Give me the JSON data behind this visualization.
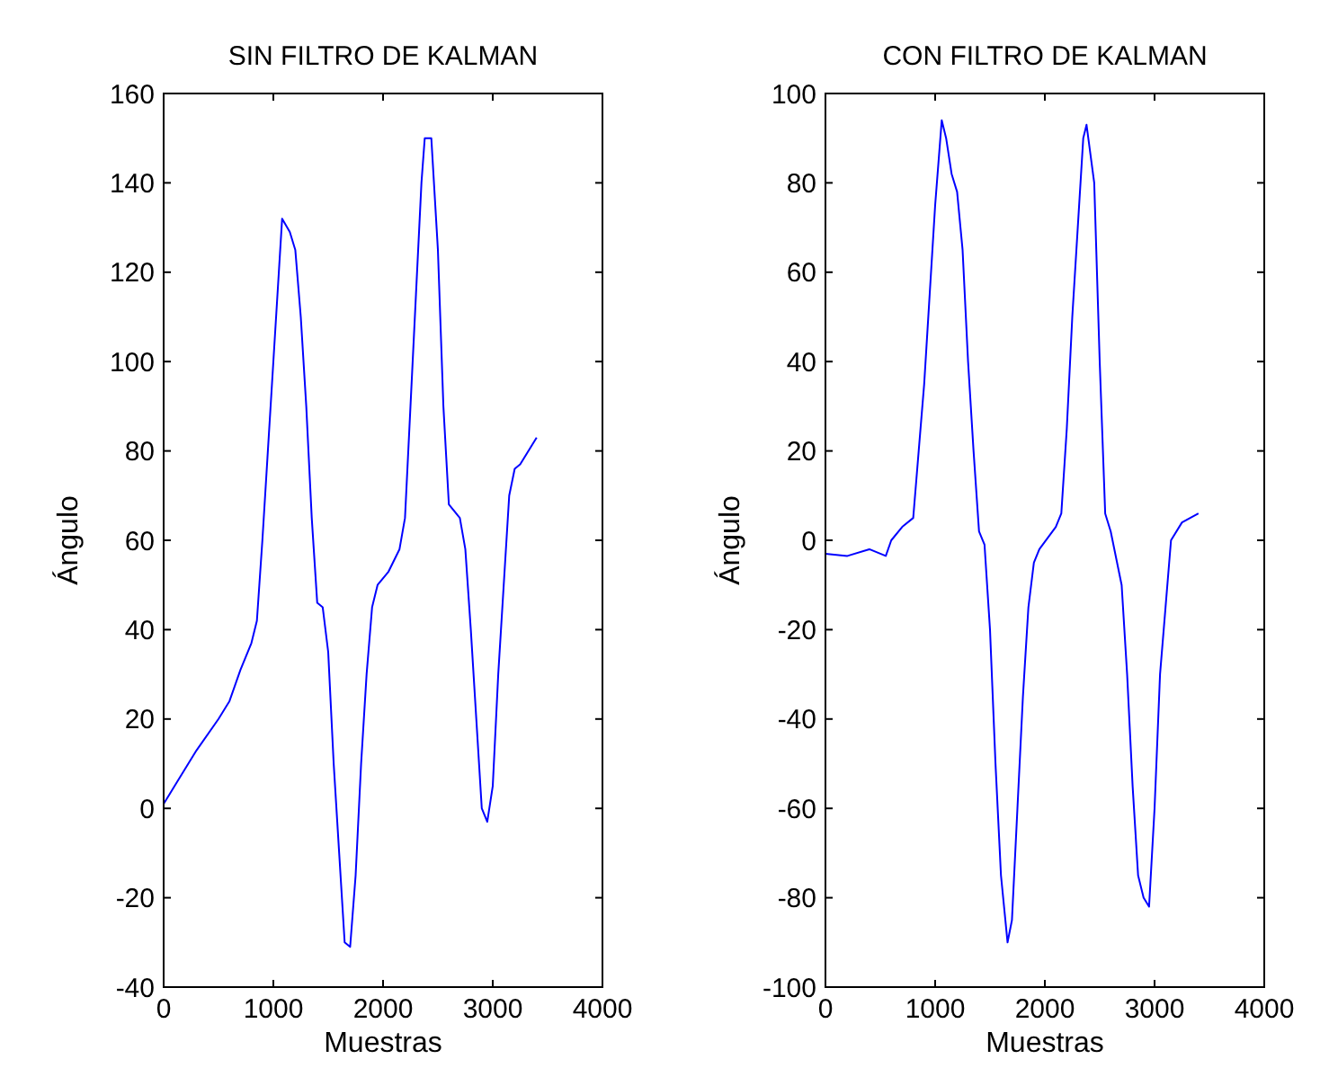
{
  "chart_data": [
    {
      "type": "line",
      "title": "SIN FILTRO DE KALMAN",
      "xlabel": "Muestras",
      "ylabel": "Ángulo",
      "xlim": [
        0,
        4000
      ],
      "xticks": [
        0,
        1000,
        2000,
        3000,
        4000
      ],
      "ylim": [
        -40,
        160
      ],
      "yticks": [
        -40,
        -20,
        0,
        20,
        40,
        60,
        80,
        100,
        120,
        140,
        160
      ],
      "grid": false,
      "series": [
        {
          "color": "#0000ff",
          "x": [
            0,
            100,
            300,
            500,
            600,
            700,
            800,
            850,
            900,
            950,
            1000,
            1050,
            1080,
            1150,
            1200,
            1250,
            1300,
            1350,
            1400,
            1450,
            1500,
            1550,
            1600,
            1650,
            1700,
            1750,
            1800,
            1850,
            1900,
            1950,
            2050,
            2150,
            2200,
            2250,
            2300,
            2350,
            2380,
            2440,
            2500,
            2550,
            2600,
            2700,
            2750,
            2800,
            2850,
            2900,
            2950,
            3000,
            3050,
            3100,
            3150,
            3200,
            3250,
            3400
          ],
          "values": [
            1,
            5,
            13,
            20,
            24,
            31,
            37,
            42,
            60,
            80,
            100,
            120,
            132,
            129,
            125,
            110,
            90,
            65,
            46,
            45,
            35,
            10,
            -10,
            -30,
            -31,
            -15,
            10,
            30,
            45,
            50,
            53,
            58,
            65,
            90,
            115,
            140,
            150,
            150,
            125,
            90,
            68,
            65,
            58,
            40,
            20,
            0,
            -3,
            5,
            30,
            50,
            70,
            76,
            77,
            83
          ]
        }
      ]
    },
    {
      "type": "line",
      "title": "CON FILTRO DE KALMAN",
      "xlabel": "Muestras",
      "ylabel": "Ángulo",
      "xlim": [
        0,
        4000
      ],
      "xticks": [
        0,
        1000,
        2000,
        3000,
        4000
      ],
      "ylim": [
        -100,
        100
      ],
      "yticks": [
        -100,
        -80,
        -60,
        -40,
        -20,
        0,
        20,
        40,
        60,
        80,
        100
      ],
      "grid": false,
      "series": [
        {
          "color": "#0000ff",
          "x": [
            0,
            200,
            400,
            550,
            600,
            700,
            800,
            850,
            900,
            950,
            1000,
            1060,
            1100,
            1150,
            1200,
            1250,
            1300,
            1350,
            1400,
            1450,
            1500,
            1550,
            1600,
            1660,
            1700,
            1750,
            1800,
            1850,
            1900,
            1950,
            2100,
            2150,
            2200,
            2250,
            2300,
            2350,
            2380,
            2450,
            2500,
            2550,
            2600,
            2700,
            2750,
            2800,
            2850,
            2900,
            2950,
            3000,
            3050,
            3100,
            3150,
            3250,
            3400
          ],
          "values": [
            -3,
            -3.5,
            -2,
            -3.5,
            0,
            3,
            5,
            20,
            35,
            55,
            75,
            94,
            90,
            82,
            78,
            65,
            40,
            20,
            2,
            -1,
            -20,
            -50,
            -75,
            -90,
            -85,
            -60,
            -35,
            -15,
            -5,
            -2,
            3,
            6,
            25,
            50,
            70,
            90,
            93,
            80,
            40,
            6,
            2,
            -10,
            -30,
            -55,
            -75,
            -80,
            -82,
            -60,
            -30,
            -15,
            0,
            4,
            6
          ]
        }
      ]
    }
  ]
}
